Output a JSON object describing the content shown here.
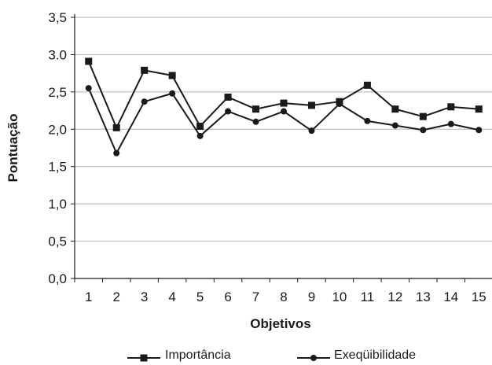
{
  "chart_data": {
    "type": "line",
    "title": "",
    "xlabel": "Objetivos",
    "ylabel": "Pontuação",
    "ylim": [
      0,
      3.5
    ],
    "y_ticks": [
      "0,0",
      "0,5",
      "1,0",
      "1,5",
      "2,0",
      "2,5",
      "3.0",
      "3,5"
    ],
    "categories": [
      "1",
      "2",
      "3",
      "4",
      "5",
      "6",
      "7",
      "8",
      "9",
      "10",
      "11",
      "12",
      "13",
      "14",
      "15"
    ],
    "grid": true,
    "legend_position": "bottom",
    "series": [
      {
        "name": "Importância",
        "marker": "square",
        "color": "#1a1a1a",
        "values": [
          2.91,
          2.02,
          2.79,
          2.72,
          2.04,
          2.43,
          2.27,
          2.35,
          2.32,
          2.37,
          2.59,
          2.27,
          2.17,
          2.3,
          2.27
        ]
      },
      {
        "name": "Exeqüibilidade",
        "marker": "circle",
        "color": "#1a1a1a",
        "values": [
          2.55,
          1.68,
          2.37,
          2.48,
          1.91,
          2.24,
          2.1,
          2.24,
          1.98,
          2.34,
          2.11,
          2.05,
          1.99,
          2.07,
          1.99
        ]
      }
    ]
  }
}
